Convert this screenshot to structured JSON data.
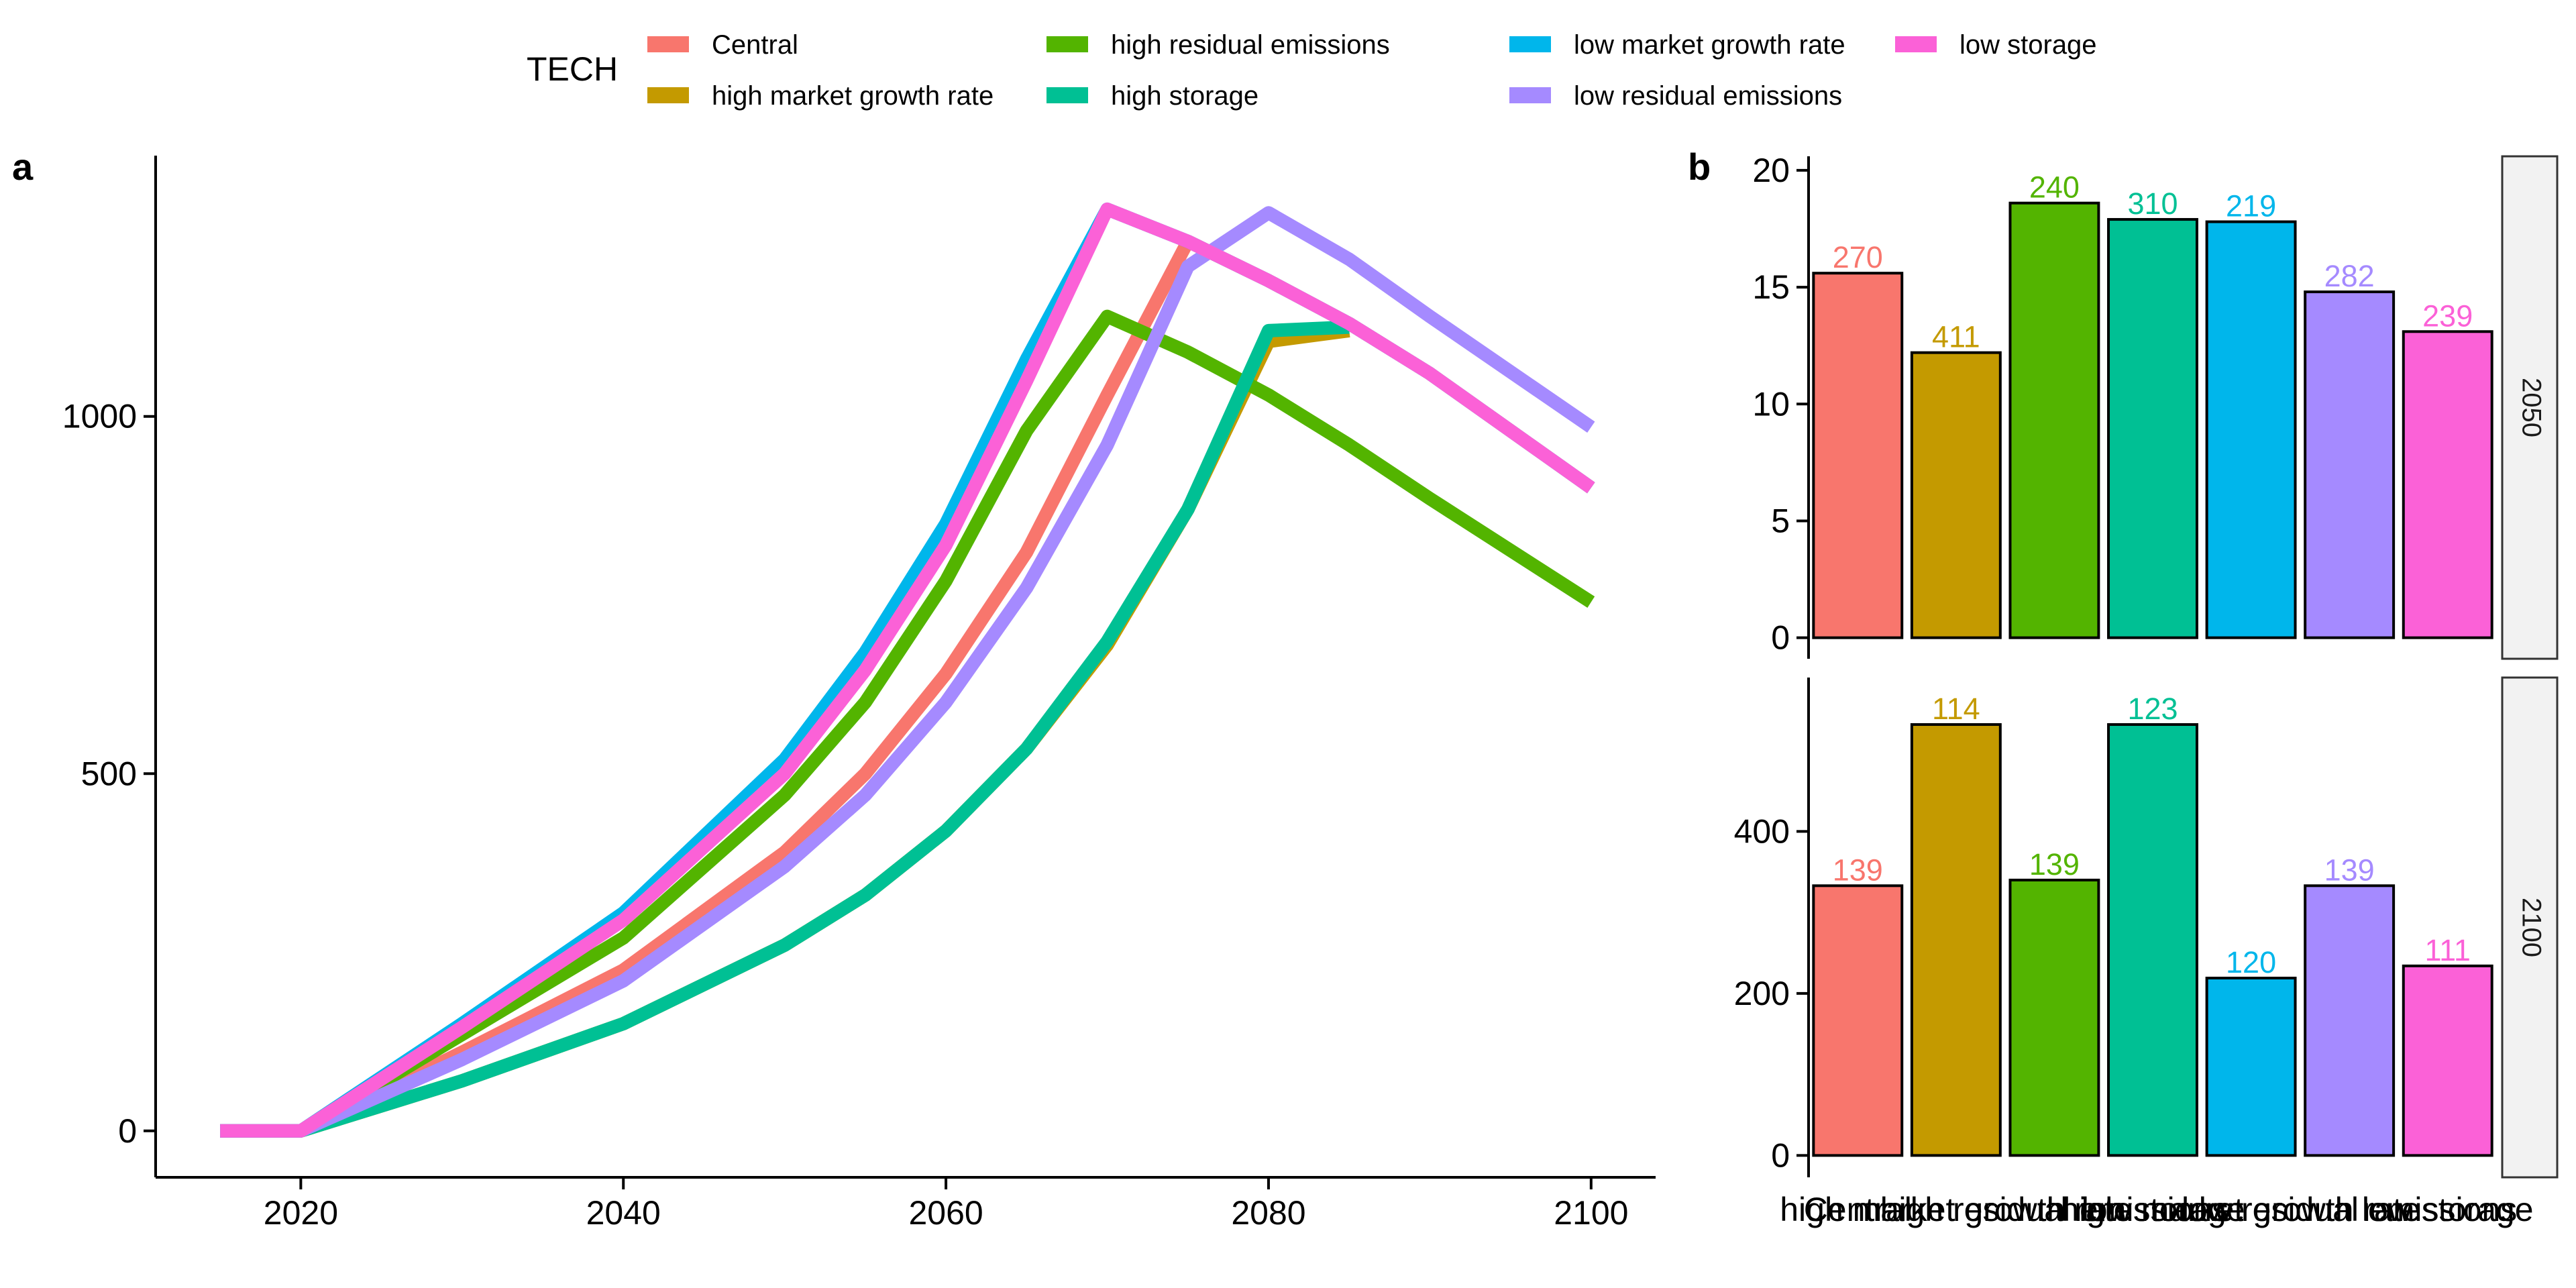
{
  "legend": {
    "title": "TECH",
    "items": [
      {
        "label": "Central",
        "color": "#F8766D"
      },
      {
        "label": "high market growth rate",
        "color": "#C49A00"
      },
      {
        "label": "high residual emissions",
        "color": "#53B400"
      },
      {
        "label": "high storage",
        "color": "#00C094"
      },
      {
        "label": "low market growth rate",
        "color": "#00B6EB"
      },
      {
        "label": "low residual emissions",
        "color": "#A58AFF"
      },
      {
        "label": "low storage",
        "color": "#FB61D7"
      }
    ]
  },
  "panels": {
    "a": "a",
    "b": "b"
  },
  "chart_data": [
    {
      "type": "line",
      "x": [
        2015,
        2020,
        2030,
        2040,
        2050,
        2055,
        2060,
        2065,
        2070,
        2075,
        2080,
        2085,
        2090,
        2100
      ],
      "xticks": [
        2020,
        2040,
        2060,
        2080,
        2100
      ],
      "yticks": [
        0,
        500,
        1000
      ],
      "xlim": [
        2011,
        2104
      ],
      "ylim": [
        -65,
        1365
      ],
      "series": [
        {
          "name": "Central",
          "color": "#F8766D",
          "values": [
            0,
            0,
            110,
            225,
            390,
            500,
            640,
            810,
            1030,
            1245,
            1190,
            1130,
            1060,
            900
          ]
        },
        {
          "name": "high market growth rate",
          "color": "#C49A00",
          "values": [
            0,
            0,
            70,
            150,
            260,
            330,
            420,
            535,
            680,
            870,
            1105,
            1120,
            null,
            null
          ]
        },
        {
          "name": "high residual emissions",
          "color": "#53B400",
          "values": [
            0,
            0,
            135,
            270,
            470,
            600,
            770,
            980,
            1140,
            1090,
            1030,
            960,
            885,
            740
          ]
        },
        {
          "name": "high storage",
          "color": "#00C094",
          "values": [
            0,
            0,
            70,
            150,
            260,
            330,
            420,
            535,
            685,
            870,
            1120,
            1125,
            null,
            null
          ]
        },
        {
          "name": "low market growth rate",
          "color": "#00B6EB",
          "values": [
            0,
            0,
            150,
            305,
            520,
            670,
            850,
            1080,
            1290,
            1245,
            1190,
            1130,
            1060,
            900
          ]
        },
        {
          "name": "low residual emissions",
          "color": "#A58AFF",
          "values": [
            0,
            0,
            100,
            210,
            370,
            470,
            600,
            760,
            960,
            1210,
            1285,
            1220,
            1140,
            985
          ]
        },
        {
          "name": "low storage",
          "color": "#FB61D7",
          "values": [
            0,
            0,
            145,
            295,
            500,
            645,
            820,
            1050,
            1290,
            1245,
            1190,
            1130,
            1060,
            900
          ]
        }
      ]
    },
    {
      "type": "bar",
      "facet": "2050",
      "categories": [
        "Central",
        "high market growth rate",
        "high residual emissions",
        "high storage",
        "low market growth rate",
        "low residual emissions",
        "low storage"
      ],
      "colors": [
        "#F8766D",
        "#C49A00",
        "#53B400",
        "#00C094",
        "#00B6EB",
        "#A58AFF",
        "#FB61D7"
      ],
      "values": [
        15.6,
        12.2,
        18.6,
        17.9,
        17.8,
        14.8,
        13.1
      ],
      "labels": [
        "270",
        "411",
        "240",
        "310",
        "219",
        "282",
        "239"
      ],
      "yticks": [
        0,
        5,
        10,
        15,
        20
      ],
      "ylim": [
        -0.9,
        20.6
      ]
    },
    {
      "type": "bar",
      "facet": "2100",
      "categories": [
        "Central",
        "high market growth rate",
        "high residual emissions",
        "high storage",
        "low market growth rate",
        "low residual emissions",
        "low storage"
      ],
      "colors": [
        "#F8766D",
        "#C49A00",
        "#53B400",
        "#00C094",
        "#00B6EB",
        "#A58AFF",
        "#FB61D7"
      ],
      "values": [
        333,
        532,
        340,
        532,
        219,
        333,
        234
      ],
      "labels": [
        "139",
        "114",
        "139",
        "123",
        "120",
        "139",
        "111"
      ],
      "yticks": [
        0,
        200,
        400
      ],
      "ylim": [
        -27,
        590
      ]
    }
  ]
}
